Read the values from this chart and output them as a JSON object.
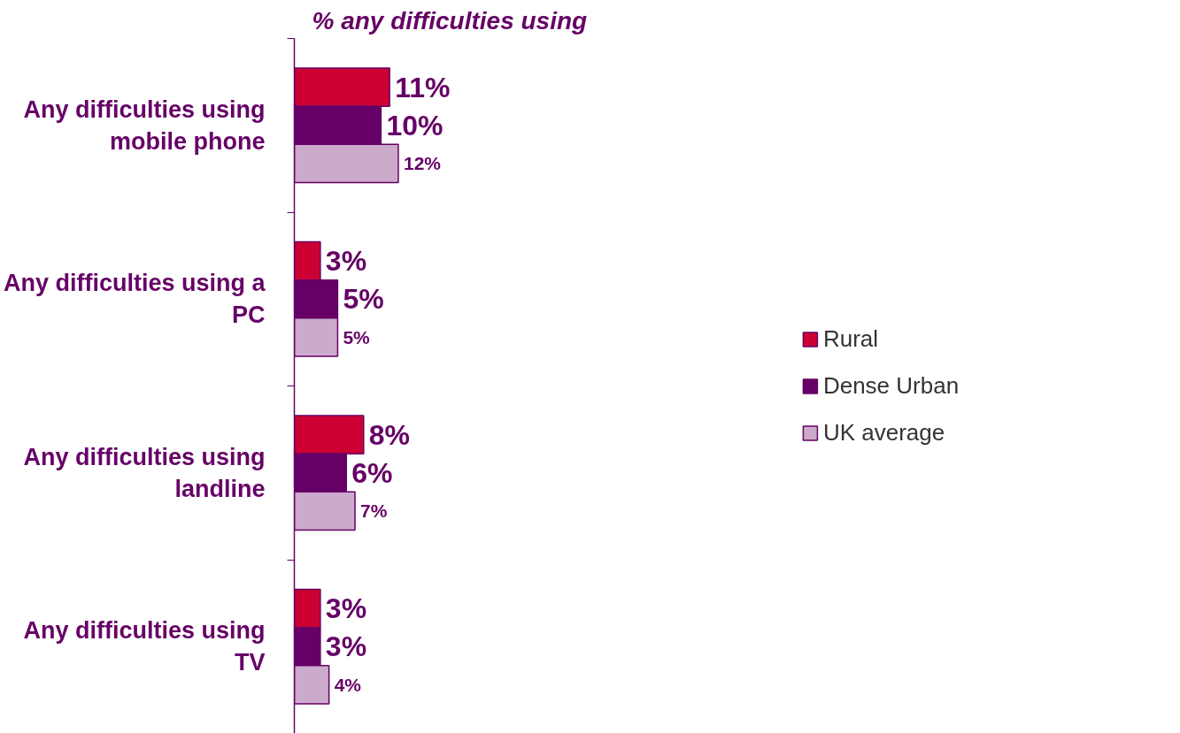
{
  "chart_data": {
    "type": "bar",
    "orientation": "horizontal",
    "title": "% any difficulties using",
    "categories": [
      "Any difficulties using mobile phone",
      "Any difficulties using a PC",
      "Any difficulties using landline",
      "Any difficulties using TV"
    ],
    "series": [
      {
        "name": "Rural",
        "color": "#cc0033",
        "values": [
          11,
          3,
          8,
          3
        ],
        "value_labels": [
          "11%",
          "3%",
          "8%",
          "3%"
        ]
      },
      {
        "name": "Dense Urban",
        "color": "#660066",
        "values": [
          10,
          5,
          6,
          3
        ],
        "value_labels": [
          "10%",
          "5%",
          "6%",
          "3%"
        ]
      },
      {
        "name": "UK average",
        "color": "#ccaacc",
        "values": [
          12,
          5,
          7,
          4
        ],
        "value_labels": [
          "12%",
          "5%",
          "7%",
          "4%"
        ]
      }
    ],
    "legend": "right",
    "grid": false
  }
}
